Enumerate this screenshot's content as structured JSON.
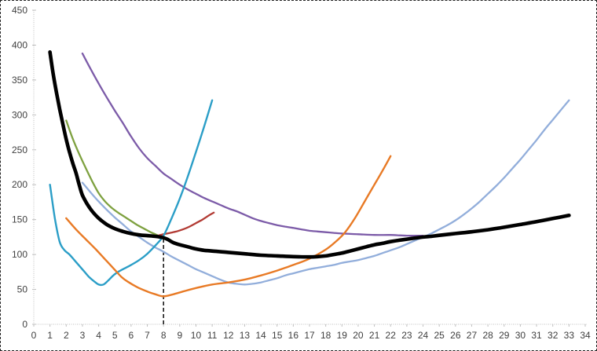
{
  "chart_data": {
    "type": "line",
    "title": "",
    "xlabel": "",
    "ylabel": "",
    "xlim": [
      0,
      34
    ],
    "ylim": [
      0,
      450
    ],
    "grid": false,
    "legend_position": "none",
    "x_tick_labels": [
      0,
      1,
      2,
      3,
      4,
      5,
      6,
      7,
      8,
      9,
      10,
      11,
      12,
      13,
      14,
      15,
      16,
      17,
      18,
      19,
      20,
      21,
      22,
      23,
      24,
      25,
      26,
      27,
      28,
      29,
      30,
      31,
      32,
      33,
      34
    ],
    "y_tick_labels": [
      0,
      50,
      100,
      150,
      200,
      250,
      300,
      350,
      400,
      450
    ],
    "axis_color": "#bfbfbf",
    "label_color": "#3f3f3f",
    "annotations": [
      {
        "type": "dashed-vline",
        "x": 8,
        "y_from": 0,
        "y_to": 122,
        "color": "#1a1a1a"
      }
    ],
    "series": [
      {
        "name": "srac-purple",
        "color": "#7c5ba8",
        "width": 2.3,
        "points": [
          [
            3,
            388
          ],
          [
            3.5,
            366
          ],
          [
            4,
            345
          ],
          [
            4.5,
            325
          ],
          [
            5,
            306
          ],
          [
            5.5,
            288
          ],
          [
            6,
            269
          ],
          [
            6.5,
            252
          ],
          [
            7,
            238
          ],
          [
            7.5,
            227
          ],
          [
            8,
            216
          ],
          [
            8.5,
            208
          ],
          [
            9,
            200
          ],
          [
            9.5,
            193
          ],
          [
            10,
            187
          ],
          [
            10.5,
            181
          ],
          [
            11,
            176
          ],
          [
            11.5,
            171
          ],
          [
            12,
            166
          ],
          [
            12.5,
            162
          ],
          [
            13,
            157
          ],
          [
            13.5,
            152
          ],
          [
            14,
            148
          ],
          [
            14.5,
            145
          ],
          [
            15,
            142
          ],
          [
            15.5,
            140
          ],
          [
            16,
            138
          ],
          [
            16.5,
            136
          ],
          [
            17,
            134
          ],
          [
            17.5,
            133
          ],
          [
            18,
            132
          ],
          [
            18.5,
            131
          ],
          [
            19,
            130
          ],
          [
            20,
            129
          ],
          [
            21,
            128
          ],
          [
            22,
            128
          ],
          [
            23,
            127
          ],
          [
            24,
            127
          ]
        ]
      },
      {
        "name": "srac-green",
        "color": "#7ea140",
        "width": 2.3,
        "points": [
          [
            2,
            292
          ],
          [
            2.4,
            266
          ],
          [
            2.8,
            244
          ],
          [
            3.2,
            224
          ],
          [
            3.6,
            205
          ],
          [
            4,
            188
          ],
          [
            4.4,
            176
          ],
          [
            4.8,
            167
          ],
          [
            5.2,
            160
          ],
          [
            5.6,
            154
          ],
          [
            6,
            148
          ],
          [
            6.4,
            142
          ],
          [
            6.8,
            137
          ],
          [
            7.2,
            132
          ],
          [
            7.6,
            128
          ]
        ]
      },
      {
        "name": "srac-darkred",
        "color": "#b23b34",
        "width": 2.3,
        "points": [
          [
            7.2,
            126
          ],
          [
            7.6,
            127
          ],
          [
            8,
            129
          ],
          [
            8.4,
            131
          ],
          [
            8.8,
            133
          ],
          [
            9.2,
            136
          ],
          [
            9.6,
            140
          ],
          [
            10,
            145
          ],
          [
            10.4,
            150
          ],
          [
            10.8,
            156
          ],
          [
            11.1,
            160
          ]
        ]
      },
      {
        "name": "srac-lightblue",
        "color": "#92aedb",
        "width": 2.3,
        "points": [
          [
            3,
            203
          ],
          [
            3.5,
            189
          ],
          [
            4,
            176
          ],
          [
            4.5,
            164
          ],
          [
            5,
            153
          ],
          [
            5.5,
            143
          ],
          [
            6,
            133
          ],
          [
            6.5,
            125
          ],
          [
            7,
            117
          ],
          [
            7.5,
            110
          ],
          [
            8,
            104
          ],
          [
            8.5,
            97
          ],
          [
            9,
            91
          ],
          [
            9.5,
            85
          ],
          [
            10,
            79
          ],
          [
            10.5,
            74
          ],
          [
            11,
            69
          ],
          [
            11.5,
            64
          ],
          [
            12,
            60
          ],
          [
            12.5,
            58
          ],
          [
            13,
            57
          ],
          [
            13.5,
            58
          ],
          [
            14,
            60
          ],
          [
            14.5,
            63
          ],
          [
            15,
            66
          ],
          [
            15.5,
            70
          ],
          [
            16,
            73
          ],
          [
            16.5,
            76
          ],
          [
            17,
            79
          ],
          [
            17.5,
            81
          ],
          [
            18,
            83
          ],
          [
            18.5,
            85
          ],
          [
            19,
            88
          ],
          [
            19.5,
            90
          ],
          [
            20,
            92
          ],
          [
            20.5,
            95
          ],
          [
            21,
            98
          ],
          [
            21.5,
            102
          ],
          [
            22,
            106
          ],
          [
            22.5,
            110
          ],
          [
            23,
            115
          ],
          [
            23.5,
            120
          ],
          [
            24,
            125
          ],
          [
            24.5,
            130
          ],
          [
            25,
            136
          ],
          [
            25.5,
            142
          ],
          [
            26,
            149
          ],
          [
            26.5,
            157
          ],
          [
            27,
            166
          ],
          [
            27.5,
            176
          ],
          [
            28,
            187
          ],
          [
            28.5,
            198
          ],
          [
            29,
            210
          ],
          [
            29.5,
            223
          ],
          [
            30,
            236
          ],
          [
            30.5,
            250
          ],
          [
            31,
            264
          ],
          [
            31.5,
            279
          ],
          [
            32,
            293
          ],
          [
            32.5,
            307
          ],
          [
            33,
            321
          ]
        ]
      },
      {
        "name": "srac-teal",
        "color": "#2b9ec7",
        "width": 2.4,
        "points": [
          [
            1,
            200
          ],
          [
            1.3,
            152
          ],
          [
            1.6,
            118
          ],
          [
            1.9,
            106
          ],
          [
            2.2,
            100
          ],
          [
            2.5,
            92
          ],
          [
            2.8,
            84
          ],
          [
            3.1,
            76
          ],
          [
            3.4,
            68
          ],
          [
            3.7,
            62
          ],
          [
            4,
            57
          ],
          [
            4.3,
            57
          ],
          [
            4.6,
            63
          ],
          [
            4.9,
            70
          ],
          [
            5.2,
            75
          ],
          [
            5.5,
            79
          ],
          [
            6,
            85
          ],
          [
            6.5,
            92
          ],
          [
            7,
            101
          ],
          [
            7.5,
            113
          ],
          [
            8,
            127
          ],
          [
            8.5,
            152
          ],
          [
            9,
            180
          ],
          [
            9.5,
            212
          ],
          [
            10,
            247
          ],
          [
            10.5,
            283
          ],
          [
            11,
            321
          ]
        ]
      },
      {
        "name": "srac-orange",
        "color": "#e87a25",
        "width": 2.4,
        "points": [
          [
            2,
            152
          ],
          [
            2.6,
            136
          ],
          [
            3.2,
            122
          ],
          [
            3.8,
            108
          ],
          [
            4.4,
            93
          ],
          [
            5,
            78
          ],
          [
            5.4,
            68
          ],
          [
            5.8,
            61
          ],
          [
            6.4,
            53
          ],
          [
            7,
            47
          ],
          [
            7.5,
            43
          ],
          [
            8,
            40
          ],
          [
            8.6,
            43
          ],
          [
            9.2,
            47
          ],
          [
            10,
            52
          ],
          [
            11,
            57
          ],
          [
            12,
            60
          ],
          [
            13,
            64
          ],
          [
            14,
            70
          ],
          [
            15,
            77
          ],
          [
            16,
            85
          ],
          [
            17,
            94
          ],
          [
            18,
            107
          ],
          [
            18.6,
            118
          ],
          [
            19.2,
            132
          ],
          [
            19.8,
            152
          ],
          [
            20.4,
            176
          ],
          [
            21,
            200
          ],
          [
            21.5,
            220
          ],
          [
            22,
            241
          ]
        ]
      },
      {
        "name": "lrac-black",
        "color": "#000000",
        "width": 4.6,
        "points": [
          [
            1,
            390
          ],
          [
            1.2,
            358
          ],
          [
            1.4,
            332
          ],
          [
            1.6,
            308
          ],
          [
            1.8,
            286
          ],
          [
            2,
            265
          ],
          [
            2.2,
            247
          ],
          [
            2.4,
            231
          ],
          [
            2.6,
            217
          ],
          [
            2.8,
            200
          ],
          [
            3,
            185
          ],
          [
            3.3,
            172
          ],
          [
            3.6,
            162
          ],
          [
            4,
            152
          ],
          [
            4.5,
            143
          ],
          [
            5,
            137
          ],
          [
            5.5,
            133
          ],
          [
            6,
            130
          ],
          [
            6.5,
            128
          ],
          [
            7,
            127
          ],
          [
            7.5,
            126
          ],
          [
            8,
            124
          ],
          [
            8.3,
            121
          ],
          [
            8.6,
            117
          ],
          [
            9,
            114
          ],
          [
            9.5,
            111
          ],
          [
            10,
            108
          ],
          [
            10.5,
            106
          ],
          [
            11,
            105
          ],
          [
            12,
            103
          ],
          [
            13,
            101
          ],
          [
            14,
            99
          ],
          [
            15,
            98
          ],
          [
            16,
            97
          ],
          [
            17,
            96.5
          ],
          [
            17.5,
            97
          ],
          [
            18,
            98
          ],
          [
            18.5,
            100
          ],
          [
            19,
            102
          ],
          [
            19.5,
            105
          ],
          [
            20,
            108
          ],
          [
            20.5,
            111
          ],
          [
            21,
            114
          ],
          [
            21.5,
            116
          ],
          [
            22,
            118.5
          ],
          [
            23,
            122
          ],
          [
            24,
            125
          ],
          [
            24.5,
            126
          ],
          [
            25,
            127.5
          ],
          [
            26,
            130
          ],
          [
            27,
            132.5
          ],
          [
            28,
            135.5
          ],
          [
            29,
            139
          ],
          [
            30,
            143
          ],
          [
            31,
            147
          ],
          [
            32,
            151.5
          ],
          [
            33,
            156
          ]
        ]
      }
    ]
  }
}
